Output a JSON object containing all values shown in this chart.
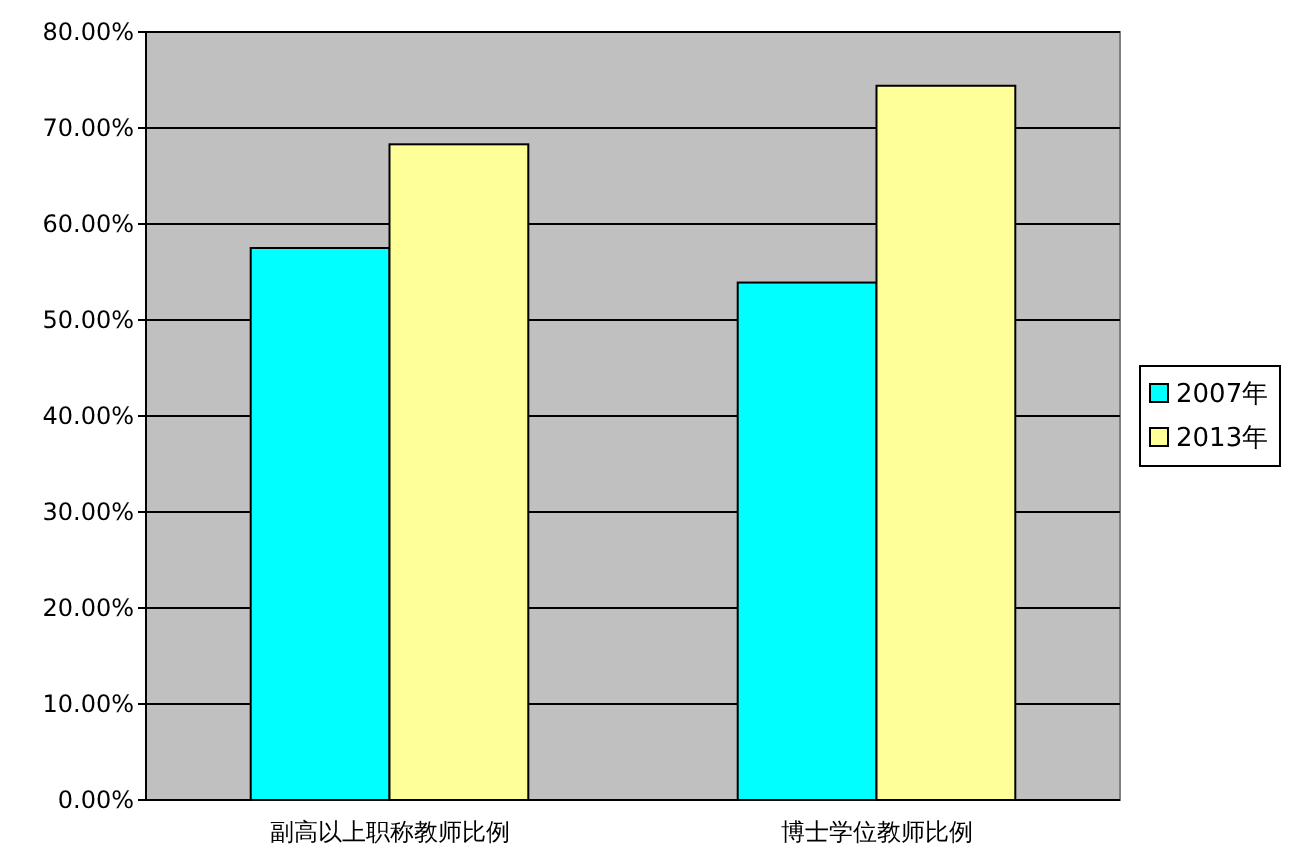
{
  "chart_data": {
    "type": "bar",
    "categories": [
      "副高以上职称教师比例",
      "博士学位教师比例"
    ],
    "series": [
      {
        "name": "2007年",
        "color": "#00ffff",
        "values": [
          57.5,
          53.9
        ]
      },
      {
        "name": "2013年",
        "color": "#ffff99",
        "values": [
          68.3,
          74.4
        ]
      }
    ],
    "ylim": [
      0,
      80
    ],
    "yticks": [
      {
        "value": 0,
        "label": "0.00%"
      },
      {
        "value": 10,
        "label": "10.00%"
      },
      {
        "value": 20,
        "label": "20.00%"
      },
      {
        "value": 30,
        "label": "30.00%"
      },
      {
        "value": 40,
        "label": "40.00%"
      },
      {
        "value": 50,
        "label": "50.00%"
      },
      {
        "value": 60,
        "label": "60.00%"
      },
      {
        "value": 70,
        "label": "70.00%"
      },
      {
        "value": 80,
        "label": "80.00%"
      }
    ],
    "grid": "y",
    "legend": "right"
  }
}
